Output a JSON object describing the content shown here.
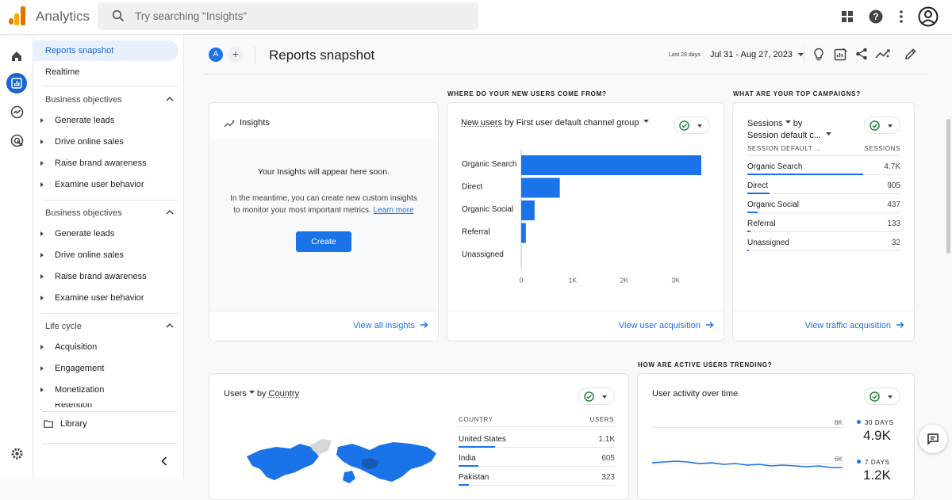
{
  "app": {
    "name": "Analytics"
  },
  "search": {
    "placeholder": "Try searching \"Insights\""
  },
  "sidebar": {
    "reports_snapshot": "Reports snapshot",
    "realtime": "Realtime",
    "groups": [
      {
        "title": "Business objectives",
        "items": [
          "Generate leads",
          "Drive online sales",
          "Raise brand awareness",
          "Examine user behavior"
        ]
      },
      {
        "title": "Business objectives",
        "items": [
          "Generate leads",
          "Drive online sales",
          "Raise brand awareness",
          "Examine user behavior"
        ]
      },
      {
        "title": "Life cycle",
        "items": [
          "Acquisition",
          "Engagement",
          "Monetization",
          "Retention"
        ]
      }
    ],
    "library": "Library"
  },
  "header": {
    "avatar_letter": "A",
    "add_label": "+",
    "title": "Reports snapshot",
    "last_days": "Last 28 days",
    "date_range": "Jul 31 - Aug 27, 2023"
  },
  "sections": {
    "new_users": "WHERE DO YOUR NEW USERS COME FROM?",
    "campaigns": "WHAT ARE YOUR TOP CAMPAIGNS?",
    "active_users": "HOW ARE ACTIVE USERS TRENDING?"
  },
  "insights": {
    "title": "Insights",
    "headline": "Your Insights will appear here soon.",
    "body_line1": "In the meantime, you can create new custom insights",
    "body_line2": "to monitor your most important metrics.",
    "learn_more": "Learn more",
    "create": "Create",
    "view_all": "View all insights"
  },
  "acquisition": {
    "metric": "New users",
    "by": "by First user default channel group",
    "view_link": "View user acquisition"
  },
  "chart_data": {
    "type": "bar",
    "orientation": "horizontal",
    "categories": [
      "Organic Search",
      "Direct",
      "Organic Social",
      "Referral",
      "Unassigned"
    ],
    "values": [
      3500,
      750,
      260,
      90,
      0
    ],
    "xticks": [
      "0",
      "1K",
      "2K",
      "3K"
    ],
    "xlim": [
      0,
      3500
    ],
    "bar_color": "#1a73e8"
  },
  "campaigns": {
    "metric": "Sessions",
    "by_label": "by",
    "dimension": "Session default c...",
    "col1": "SESSION DEFAULT ...",
    "col2": "SESSIONS",
    "rows": [
      {
        "name": "Organic Search",
        "value": "4.7K",
        "fraction": 1.0
      },
      {
        "name": "Direct",
        "value": "905",
        "fraction": 0.19
      },
      {
        "name": "Organic Social",
        "value": "437",
        "fraction": 0.09
      },
      {
        "name": "Referral",
        "value": "133",
        "fraction": 0.03
      },
      {
        "name": "Unassigned",
        "value": "32",
        "fraction": 0.007
      }
    ],
    "view_link": "View traffic acquisition"
  },
  "country": {
    "metric": "Users",
    "by_label": "by",
    "dimension": "Country",
    "col1": "COUNTRY",
    "col2": "USERS",
    "rows": [
      {
        "name": "United States",
        "value": "1.1K",
        "fraction": 1.0
      },
      {
        "name": "India",
        "value": "605",
        "fraction": 0.55
      },
      {
        "name": "Pakistan",
        "value": "323",
        "fraction": 0.29
      }
    ]
  },
  "activity": {
    "title": "User activity over time",
    "yticks": [
      "8K",
      "6K"
    ],
    "legend": [
      {
        "label": "30 DAYS",
        "value": "4.9K"
      },
      {
        "label": "7 DAYS",
        "value": "1.2K"
      }
    ]
  },
  "colors": {
    "accent": "#1a73e8",
    "success": "#188038",
    "brand_orange": "#f9ab00",
    "brand_dark_orange": "#e37400"
  }
}
